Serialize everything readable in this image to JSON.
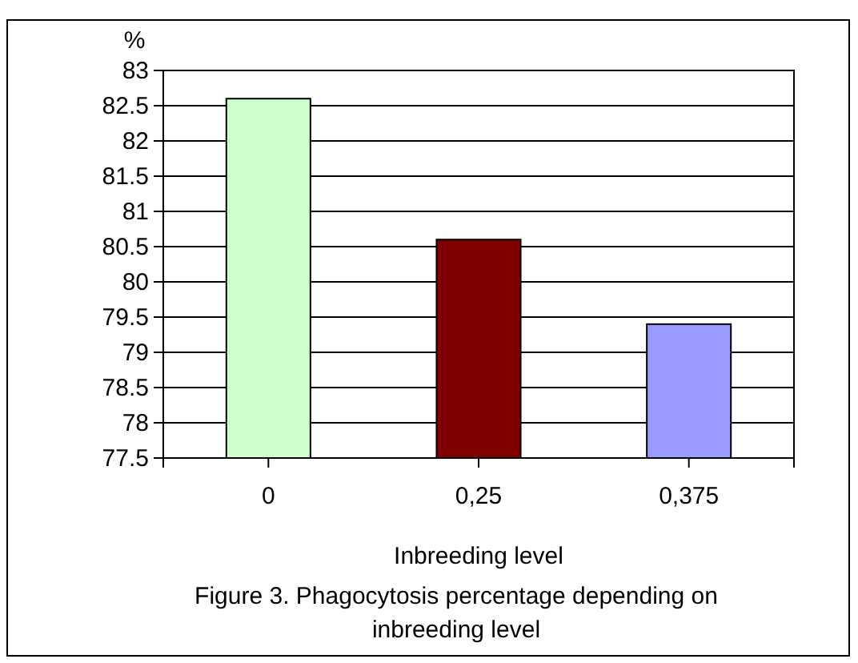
{
  "chart_data": {
    "type": "bar",
    "xlabel": "Inbreeding level",
    "ylabel": "%",
    "annotations": [
      "Figure 3. Phagocytosis percentage depending on inbreeding level"
    ],
    "categories": [
      "0",
      "0,25",
      "0,375"
    ],
    "values": [
      82.6,
      80.6,
      79.4
    ],
    "colors": [
      "#ccffcc",
      "#800000",
      "#9999ff"
    ],
    "ylim": [
      77.5,
      83
    ],
    "yticks": [
      77.5,
      78,
      78.5,
      79,
      79.5,
      80,
      80.5,
      81,
      81.5,
      82,
      82.5,
      83
    ],
    "grid": "y"
  }
}
